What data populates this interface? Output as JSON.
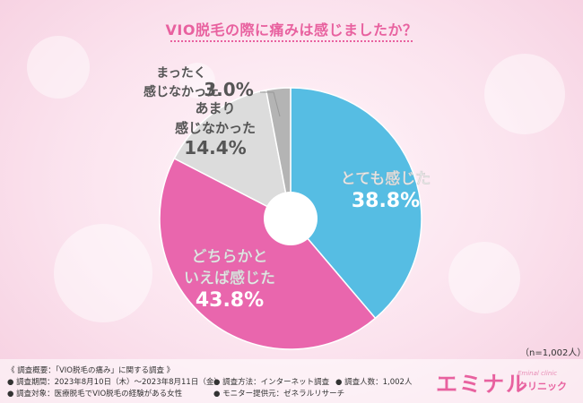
{
  "chart_data": {
    "type": "pie",
    "title": "VIO脱毛の際に痛みは感じましたか？",
    "slices": [
      {
        "label_lines": [
          "とても感じた"
        ],
        "value": 38.8,
        "display": "38.8%",
        "color": "#56bde3"
      },
      {
        "label_lines": [
          "どちらかと",
          "いえば感じた"
        ],
        "value": 43.8,
        "display": "43.8%",
        "color": "#e966ad"
      },
      {
        "label_lines": [
          "あまり",
          "感じなかった"
        ],
        "value": 14.4,
        "display": "14.4%",
        "color": "#dcdcdc"
      },
      {
        "label_lines": [
          "まったく",
          "感じなかった"
        ],
        "value": 3.0,
        "display": "3.0%",
        "color": "#b4b4b4"
      }
    ],
    "sample_size": "（n=1,002人）"
  },
  "colors": {
    "title_text": "#e8619f",
    "label_white": "#ffffff",
    "label_dark": "#555555"
  },
  "footer": {
    "summary": "《 調査概要：「VIO脱毛の痛み」に関する調査 》",
    "period": "● 調査期間：2023年8月10日（木）～2023年8月11日（金）",
    "method": "● 調査方法：インターネット調査",
    "count": "● 調査人数：1,002人",
    "target": "● 調査対象：医療脱毛でVIO脱毛の経験がある女性",
    "provider": "● モニター提供元：ゼネラルリサーチ"
  },
  "logo": {
    "main": "エミナル",
    "small": "Eminal clinic",
    "sub": "クリニック"
  }
}
